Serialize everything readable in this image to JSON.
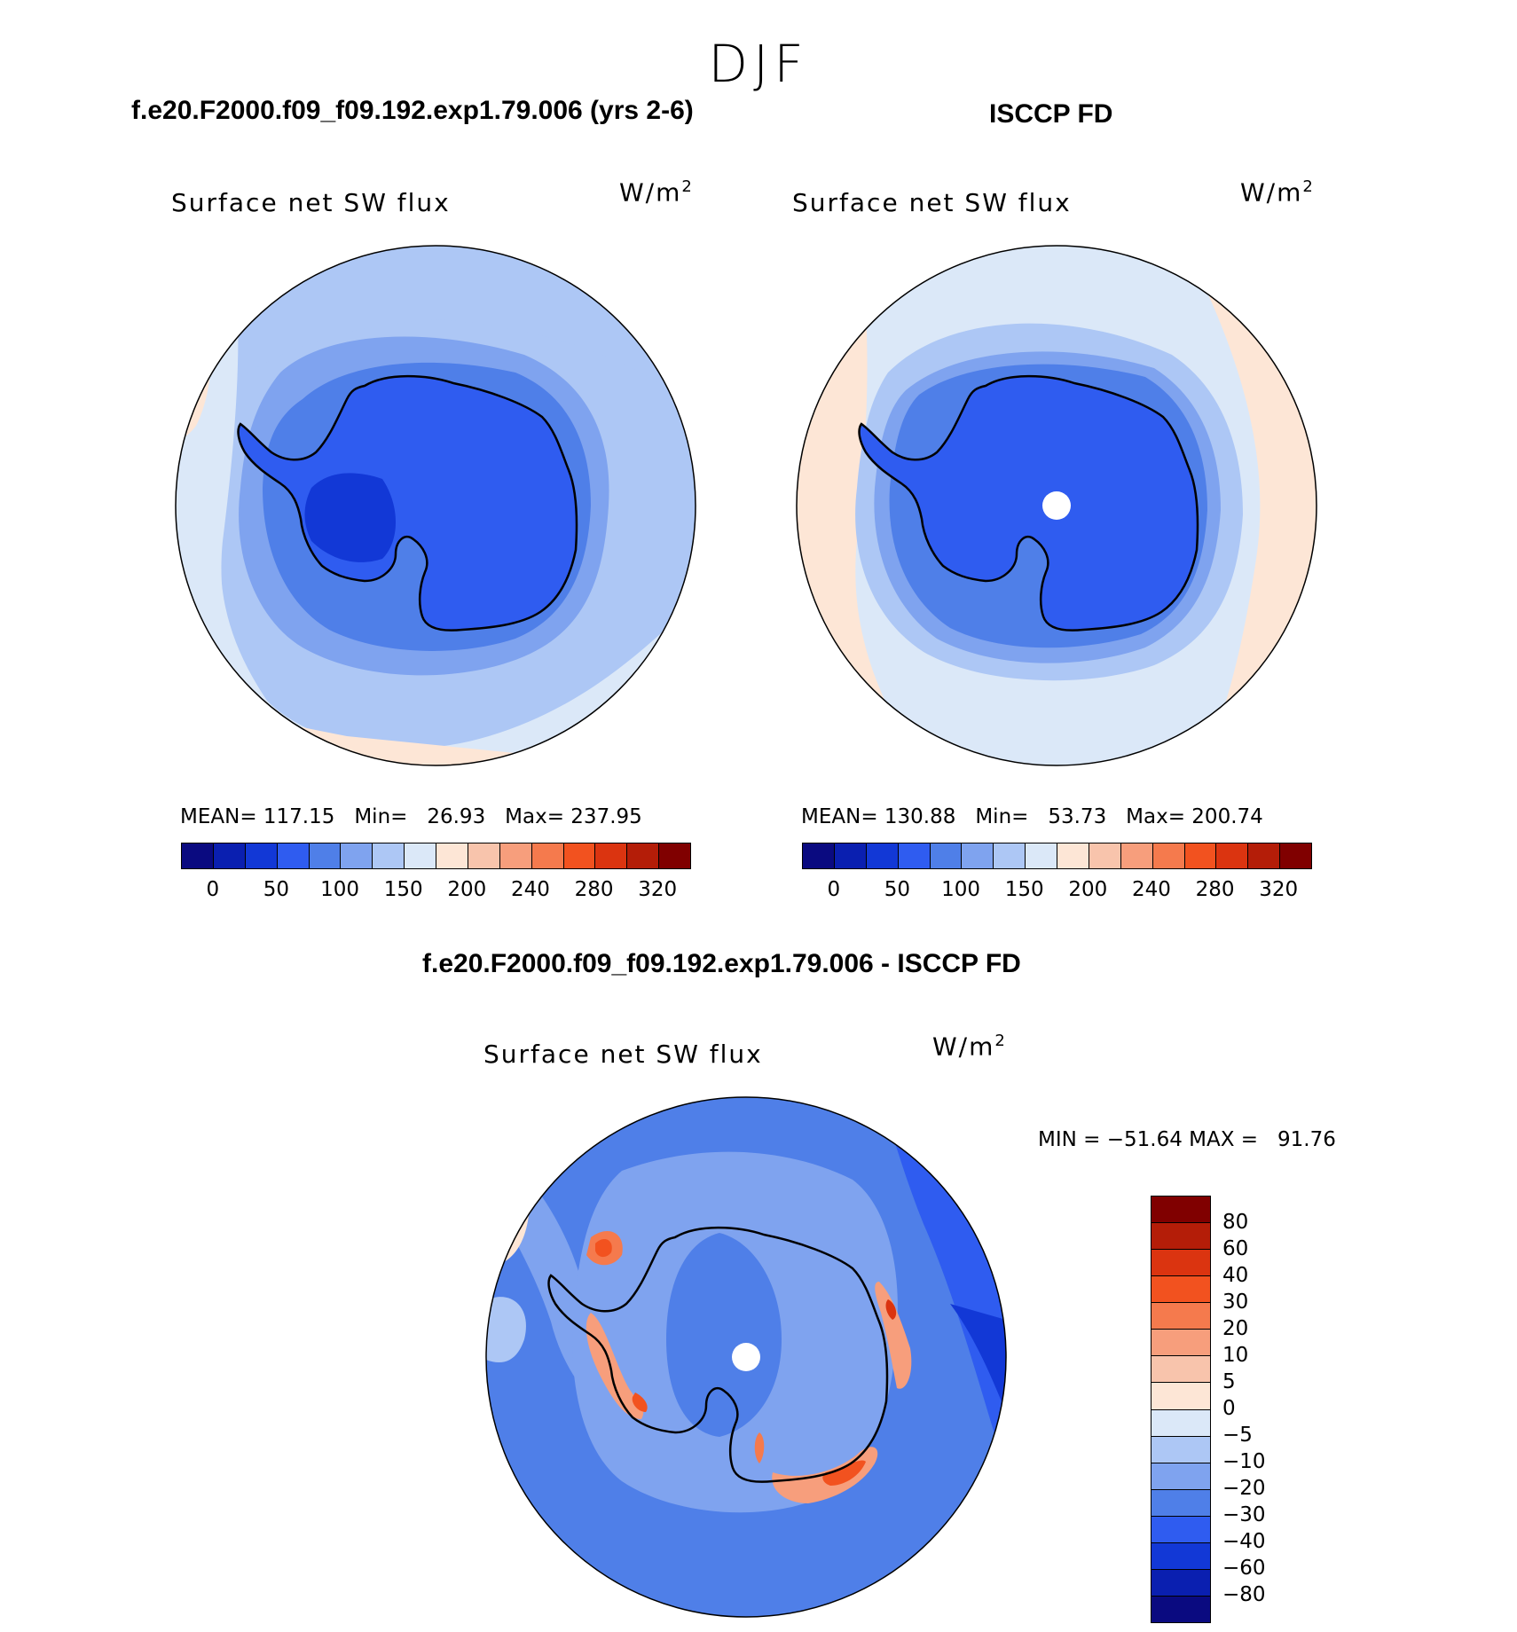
{
  "season": "DJF",
  "panels": {
    "model_title": "f.e20.F2000.f09_f09.192.exp1.79.006 (yrs 2-6)",
    "obs_title": "ISCCP FD",
    "diff_title": "f.e20.F2000.f09_f09.192.exp1.79.006 - ISCCP FD"
  },
  "chart_data": [
    {
      "type": "heatmap",
      "title": "Surface net SW flux",
      "units_base": "W/m",
      "units_exp": "2",
      "stats": {
        "mean_label": "MEAN=",
        "mean": "117.15",
        "min_label": "Min=",
        "min": "26.93",
        "max_label": "Max=",
        "max": "237.95"
      },
      "colorbar": {
        "ticks": [
          "0",
          "50",
          "100",
          "150",
          "200",
          "240",
          "280",
          "320"
        ],
        "colors": [
          "#0a0a80",
          "#0a1fb0",
          "#1238d6",
          "#2f5cf0",
          "#4f7fe8",
          "#7fa3ef",
          "#adc7f5",
          "#dbe8f8",
          "#fde6d6",
          "#f8c4ac",
          "#f79e7c",
          "#f57a4d",
          "#f2521f",
          "#db3410",
          "#b41d08",
          "#800000"
        ]
      }
    },
    {
      "type": "heatmap",
      "title": "Surface net SW flux",
      "units_base": "W/m",
      "units_exp": "2",
      "stats": {
        "mean_label": "MEAN=",
        "mean": "130.88",
        "min_label": "Min=",
        "min": "53.73",
        "max_label": "Max=",
        "max": "200.74"
      },
      "colorbar": {
        "ticks": [
          "0",
          "50",
          "100",
          "150",
          "200",
          "240",
          "280",
          "320"
        ],
        "colors": [
          "#0a0a80",
          "#0a1fb0",
          "#1238d6",
          "#2f5cf0",
          "#4f7fe8",
          "#7fa3ef",
          "#adc7f5",
          "#dbe8f8",
          "#fde6d6",
          "#f8c4ac",
          "#f79e7c",
          "#f57a4d",
          "#f2521f",
          "#db3410",
          "#b41d08",
          "#800000"
        ]
      }
    },
    {
      "type": "heatmap",
      "title": "Surface net SW flux",
      "units_base": "W/m",
      "units_exp": "2",
      "stats": {
        "text": "MIN = −51.64 MAX =   91.76"
      },
      "colorbar": {
        "ticks": [
          "80",
          "60",
          "40",
          "30",
          "20",
          "10",
          "5",
          "0",
          "−5",
          "−10",
          "−20",
          "−30",
          "−40",
          "−60",
          "−80"
        ],
        "colors": [
          "#800000",
          "#b41d08",
          "#db3410",
          "#f2521f",
          "#f57a4d",
          "#f79e7c",
          "#f8c4ac",
          "#fde6d6",
          "#dbe8f8",
          "#adc7f5",
          "#7fa3ef",
          "#4f7fe8",
          "#2f5cf0",
          "#1238d6",
          "#0a1fb0",
          "#0a0a80"
        ]
      }
    }
  ]
}
